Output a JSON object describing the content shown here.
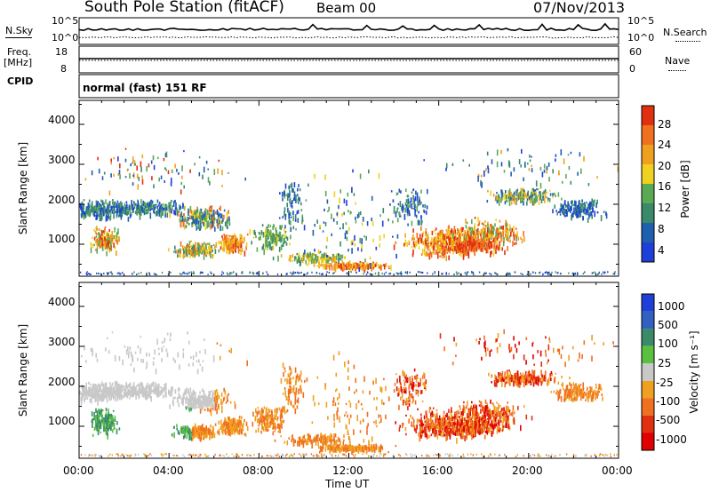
{
  "header": {
    "title": "South Pole Station (fitACF)",
    "beam": "Beam 00",
    "date": "07/Nov/2013"
  },
  "noise_panel": {
    "left_label": "N.Sky",
    "left_ticks": [
      "10^5",
      "10^0"
    ],
    "right_ticks": [
      "10^5",
      "10^0"
    ],
    "right_label": "N.Search"
  },
  "freq_panel": {
    "left_label_line1": "Freq.",
    "left_label_line2": "[MHz]",
    "left_ticks": [
      "18",
      "8"
    ],
    "right_ticks": [
      "60",
      "0"
    ],
    "right_label": "Nave"
  },
  "cpid": {
    "label": "CPID",
    "value": "normal (fast) 151 RF"
  },
  "colors": {
    "power_scale": [
      "#1f3fd9",
      "#1f5fb0",
      "#3a8a6a",
      "#5aaa55",
      "#f0d020",
      "#f0a020",
      "#f07020",
      "#e03010"
    ],
    "velocity_scale": [
      "#1f3fd9",
      "#3060c0",
      "#3a8a6a",
      "#5ac040",
      "#c8c8c8",
      "#f0a020",
      "#f07020",
      "#e03010",
      "#e00000"
    ]
  },
  "chart_data": [
    {
      "type": "heatmap",
      "name": "power",
      "ylabel": "Slant Range [km]",
      "xlabel": "",
      "x_ticks": [
        "00:00",
        "04:00",
        "08:00",
        "12:00",
        "16:00",
        "20:00",
        "00:00"
      ],
      "y_ticks": [
        "1000",
        "2000",
        "3000",
        "4000"
      ],
      "ylim": [
        200,
        4600
      ],
      "colorbar_label": "Power [dB]",
      "colorbar_ticks": [
        "4",
        "8",
        "12",
        "16",
        "20",
        "24",
        "28"
      ],
      "colorbar_range": [
        0,
        30
      ]
    },
    {
      "type": "heatmap",
      "name": "velocity",
      "ylabel": "Slant Range [km]",
      "xlabel": "Time UT",
      "x_ticks": [
        "00:00",
        "04:00",
        "08:00",
        "12:00",
        "16:00",
        "20:00",
        "00:00"
      ],
      "y_ticks": [
        "1000",
        "2000",
        "3000",
        "4000"
      ],
      "ylim": [
        200,
        4600
      ],
      "colorbar_label": "Velocity [m s⁻¹]",
      "colorbar_ticks": [
        "1000",
        "500",
        "100",
        "25",
        "-25",
        "-100",
        "-500",
        "-1000"
      ]
    }
  ]
}
